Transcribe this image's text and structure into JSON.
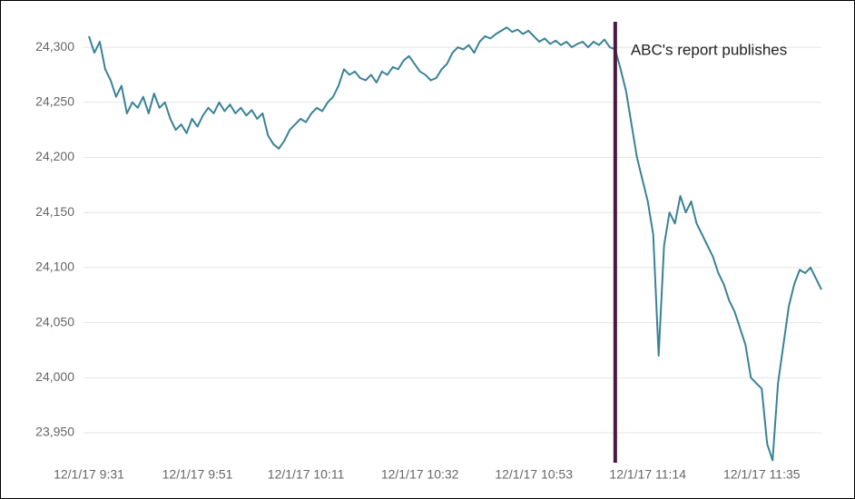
{
  "chart_data": {
    "type": "line",
    "categories": [
      "12/1/17 9:31",
      null,
      null,
      null,
      null,
      null,
      null,
      null,
      null,
      null,
      null,
      null,
      null,
      null,
      null,
      null,
      null,
      null,
      null,
      null,
      "12/1/17 9:51",
      null,
      null,
      null,
      null,
      null,
      null,
      null,
      null,
      null,
      null,
      null,
      null,
      null,
      null,
      null,
      null,
      null,
      null,
      null,
      "12/1/17 10:11",
      null,
      null,
      null,
      null,
      null,
      null,
      null,
      null,
      null,
      null,
      null,
      null,
      null,
      null,
      null,
      null,
      null,
      null,
      null,
      null,
      "12/1/17 10:32",
      null,
      null,
      null,
      null,
      null,
      null,
      null,
      null,
      null,
      null,
      null,
      null,
      null,
      null,
      null,
      null,
      null,
      null,
      null,
      null,
      "12/1/17 10:53",
      null,
      null,
      null,
      null,
      null,
      null,
      null,
      null,
      null,
      null,
      null,
      null,
      null,
      null,
      null,
      null,
      null,
      null,
      null,
      null,
      "12/1/17 11:14",
      null,
      null,
      null,
      null,
      null,
      null,
      null,
      null,
      null,
      null,
      null,
      null,
      null,
      null,
      null,
      null,
      null,
      null,
      null,
      null,
      "12/1/17 11:35",
      null,
      null,
      null,
      null,
      null,
      null,
      null,
      null,
      null,
      null,
      null
    ],
    "series": [
      {
        "color": "#3a8296",
        "values": [
          24310,
          24295,
          24305,
          24280,
          24270,
          24255,
          24265,
          24240,
          24250,
          24245,
          24255,
          24240,
          24258,
          24245,
          24250,
          24235,
          24225,
          24230,
          24222,
          24235,
          24228,
          24238,
          24245,
          24240,
          24250,
          24242,
          24248,
          24240,
          24245,
          24238,
          24243,
          24235,
          24240,
          24220,
          24212,
          24208,
          24215,
          24225,
          24230,
          24235,
          24232,
          24240,
          24245,
          24242,
          24250,
          24255,
          24265,
          24280,
          24275,
          24278,
          24272,
          24270,
          24275,
          24268,
          24278,
          24275,
          24282,
          24280,
          24288,
          24292,
          24285,
          24278,
          24275,
          24270,
          24272,
          24280,
          24285,
          24295,
          24300,
          24298,
          24302,
          24295,
          24305,
          24310,
          24308,
          24312,
          24315,
          24318,
          24314,
          24316,
          24312,
          24315,
          24310,
          24305,
          24308,
          24303,
          24306,
          24302,
          24305,
          24300,
          24303,
          24305,
          24300,
          24305,
          24302,
          24307,
          24300,
          24298,
          24280,
          24260,
          24230,
          24200,
          24180,
          24160,
          24130,
          24020,
          24120,
          24150,
          24140,
          24165,
          24150,
          24160,
          24140,
          24130,
          24120,
          24110,
          24095,
          24085,
          24070,
          24060,
          24045,
          24030,
          24000,
          23995,
          23990,
          23940,
          23925,
          23995,
          24030,
          24065,
          24085,
          24098,
          24095,
          24100,
          24090,
          24080
        ]
      }
    ],
    "ylim": [
      23925,
      24320
    ],
    "yticks": [
      {
        "value": 23950,
        "label": "23,950"
      },
      {
        "value": 24000,
        "label": "24,000"
      },
      {
        "value": 24050,
        "label": "24,050"
      },
      {
        "value": 24100,
        "label": "24,100"
      },
      {
        "value": 24150,
        "label": "24,150"
      },
      {
        "value": 24200,
        "label": "24,200"
      },
      {
        "value": 24250,
        "label": "24,250"
      },
      {
        "value": 24300,
        "label": "24,300"
      }
    ],
    "grid": true,
    "annotations": [
      {
        "text": "ABC's report publishes",
        "at": 97,
        "color": "#4a1942"
      }
    ]
  }
}
